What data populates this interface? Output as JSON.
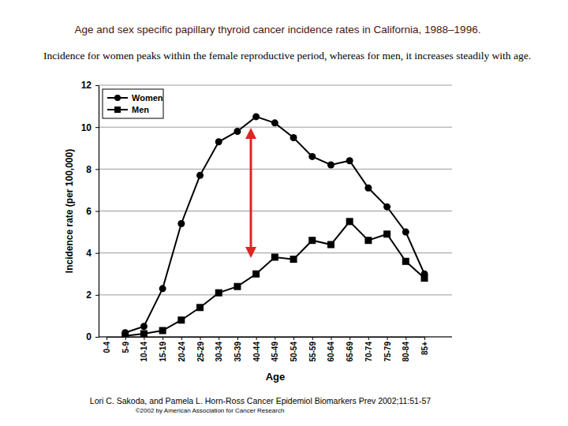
{
  "chart_data": {
    "type": "line",
    "title": "Age and sex specific papillary thyroid cancer incidence rates in California, 1988–1996.",
    "subtitle": "Incidence for women peaks within the female reproductive period, whereas for men, it increases steadily with age.",
    "x_label": "Age",
    "y_label": "Incidence rate (per 100,000)",
    "annotations": [
      "Lori C. Sakoda, and Pamela L. Horn-Ross Cancer Epidemiol Biomarkers Prev 2002;11:51-57",
      "©2002 by American Association for Cancer Research"
    ],
    "categories": [
      "0-4",
      "5-9",
      "10-14",
      "15-19",
      "20-24",
      "25-29",
      "30-34",
      "35-39",
      "40-44",
      "45-49",
      "50-54",
      "55-59",
      "60-64",
      "65-69",
      "70-74",
      "75-79",
      "80-84",
      "85+"
    ],
    "series": [
      {
        "name": "Women",
        "color": "#000000",
        "marker": "circle",
        "line_style": "solid",
        "values": [
          null,
          0.2,
          0.5,
          2.3,
          5.4,
          7.7,
          9.3,
          9.8,
          10.5,
          10.2,
          9.5,
          8.6,
          8.2,
          8.4,
          7.1,
          6.2,
          5.0,
          3.0
        ]
      },
      {
        "name": "Men",
        "color": "#000000",
        "marker": "square",
        "line_style": "solid",
        "values": [
          null,
          0.05,
          0.15,
          0.3,
          0.8,
          1.4,
          2.1,
          2.4,
          3.0,
          3.8,
          3.7,
          4.6,
          4.4,
          5.5,
          4.6,
          4.9,
          3.6,
          2.8
        ]
      }
    ],
    "ylim": [
      0,
      12
    ],
    "yticks": [
      0,
      2,
      4,
      6,
      8,
      10,
      12
    ],
    "grid": true,
    "legend": "upper left"
  }
}
